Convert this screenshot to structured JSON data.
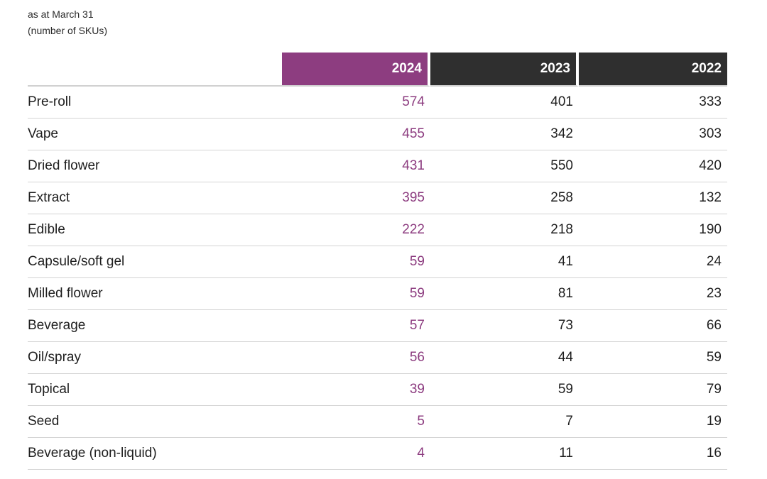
{
  "caption": {
    "line1": "as at March 31",
    "line2": "(number of SKUs)"
  },
  "colors": {
    "current_year_accent": "#8d3d80",
    "prior_year_header": "#2f2f2f"
  },
  "chart_data": {
    "type": "table",
    "title": "",
    "columns": [
      "2024",
      "2023",
      "2022"
    ],
    "rows": [
      {
        "label": "Pre-roll",
        "values": [
          "574",
          "401",
          "333"
        ]
      },
      {
        "label": "Vape",
        "values": [
          "455",
          "342",
          "303"
        ]
      },
      {
        "label": "Dried flower",
        "values": [
          "431",
          "550",
          "420"
        ]
      },
      {
        "label": "Extract",
        "values": [
          "395",
          "258",
          "132"
        ]
      },
      {
        "label": "Edible",
        "values": [
          "222",
          "218",
          "190"
        ]
      },
      {
        "label": "Capsule/soft gel",
        "values": [
          "59",
          "41",
          "24"
        ]
      },
      {
        "label": "Milled flower",
        "values": [
          "59",
          "81",
          "23"
        ]
      },
      {
        "label": "Beverage",
        "values": [
          "57",
          "73",
          "66"
        ]
      },
      {
        "label": "Oil/spray",
        "values": [
          "56",
          "44",
          "59"
        ]
      },
      {
        "label": "Topical",
        "values": [
          "39",
          "59",
          "79"
        ]
      },
      {
        "label": "Seed",
        "values": [
          "5",
          "7",
          "19"
        ]
      },
      {
        "label": "Beverage (non-liquid)",
        "values": [
          "4",
          "11",
          "16"
        ]
      }
    ]
  }
}
